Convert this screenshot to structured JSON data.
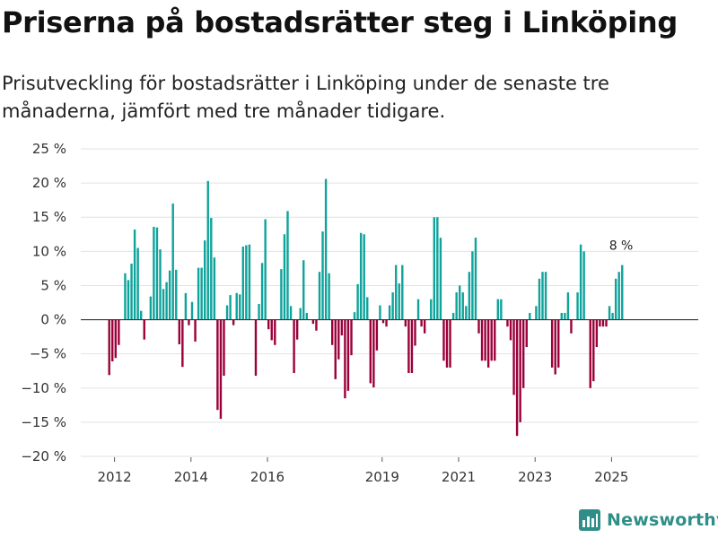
{
  "title": "Priserna på bostadsrätter steg i Linköping",
  "subtitle": "Prisutveckling för bostadsrätter i Linköping under de senaste tre månaderna, jämfört med tre månader tidigare.",
  "brand": {
    "name": "Newsworthy",
    "icon": "newsworthy-logo-icon"
  },
  "colors": {
    "positive": "#0fa39b",
    "negative": "#9b0039",
    "grid": "#e2e2e2",
    "text": "#333333",
    "brand": "#2f8f88"
  },
  "chart_data": {
    "type": "bar",
    "title": "Priserna på bostadsrätter steg i Linköping",
    "xlabel": "",
    "ylabel": "",
    "unit": "%",
    "ylim": [
      -20,
      25
    ],
    "yticks": [
      -20,
      -15,
      -10,
      -5,
      0,
      5,
      10,
      15,
      20,
      25
    ],
    "ytick_labels": [
      "−20 %",
      "−15 %",
      "−10 %",
      "−5 %",
      "0 %",
      "5 %",
      "10 %",
      "15 %",
      "20 %",
      "25 %"
    ],
    "xticks": [
      {
        "label": "2012",
        "year": 2012
      },
      {
        "label": "2014",
        "year": 2014
      },
      {
        "label": "2016",
        "year": 2016
      },
      {
        "label": "2019",
        "year": 2019
      },
      {
        "label": "2021",
        "year": 2021
      },
      {
        "label": "2023",
        "year": 2023
      },
      {
        "label": "2025",
        "year": 2025
      }
    ],
    "start": "2012-01",
    "frequency": "monthly",
    "annotation": {
      "label": "8 %",
      "target": "last"
    },
    "values": [
      -8.1,
      -6.1,
      -5.6,
      -3.7,
      0,
      6.8,
      5.8,
      8.2,
      13.2,
      10.5,
      1.3,
      -2.9,
      0,
      3.4,
      13.6,
      13.5,
      10.3,
      4.5,
      5.5,
      7.2,
      17.0,
      7.3,
      -3.6,
      -6.9,
      3.9,
      -0.8,
      2.6,
      -3.2,
      7.6,
      7.6,
      11.6,
      20.3,
      14.9,
      9.1,
      -13.2,
      -14.5,
      -8.2,
      2.1,
      3.6,
      -0.8,
      3.9,
      3.7,
      10.7,
      10.9,
      11.0,
      0,
      -8.2,
      2.3,
      8.3,
      14.7,
      -1.4,
      -3.0,
      -3.7,
      0,
      7.4,
      12.5,
      15.9,
      2.0,
      -7.8,
      -2.9,
      1.7,
      8.7,
      1.0,
      0,
      -0.6,
      -1.6,
      7.0,
      12.9,
      20.6,
      6.8,
      -3.7,
      -8.7,
      -5.8,
      -2.3,
      -11.5,
      -10.4,
      -5.2,
      1.1,
      5.2,
      12.7,
      12.5,
      3.3,
      -9.3,
      -9.9,
      -4.5,
      2.1,
      -0.5,
      -1.0,
      2.1,
      4.0,
      8.0,
      5.3,
      8.0,
      -1.0,
      -7.8,
      -7.8,
      -3.8,
      3.0,
      -1.0,
      -2.0,
      0,
      3.0,
      15.0,
      15.0,
      12.0,
      -6.0,
      -7.0,
      -7.0,
      1.0,
      4.0,
      5.0,
      4.0,
      2.0,
      7.0,
      10.0,
      12.0,
      -2.0,
      -6.0,
      -6.0,
      -7.0,
      -6.0,
      -6.0,
      3.0,
      3.0,
      0,
      -1.0,
      -3.0,
      -11.0,
      -17.0,
      -15.0,
      -10.0,
      -4.0,
      1.0,
      0,
      2.0,
      6.0,
      7.0,
      7.0,
      0,
      -7.0,
      -8.0,
      -7.0,
      1.0,
      1.0,
      4.0,
      -2.0,
      0,
      4.0,
      11.0,
      10.0,
      0,
      -10.0,
      -9.0,
      -4.0,
      -1.0,
      -1.0,
      -1.0,
      2.0,
      1.0,
      6.0,
      7.0,
      8.0
    ]
  }
}
